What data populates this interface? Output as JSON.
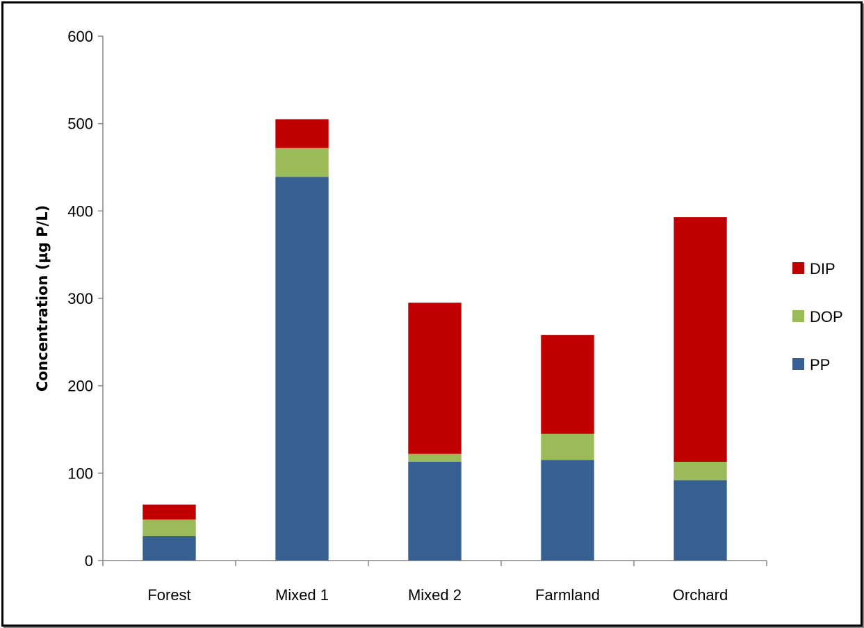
{
  "chart_data": {
    "type": "bar",
    "stacked": true,
    "categories": [
      "Forest",
      "Mixed 1",
      "Mixed 2",
      "Farmland",
      "Orchard"
    ],
    "series": [
      {
        "name": "PP",
        "color": "#376092",
        "values": [
          28,
          439,
          113,
          115,
          92
        ]
      },
      {
        "name": "DOP",
        "color": "#9bbb59",
        "values": [
          19,
          33,
          9,
          30,
          21
        ]
      },
      {
        "name": "DIP",
        "color": "#c00000",
        "values": [
          17,
          33,
          173,
          113,
          280
        ]
      }
    ],
    "title": "",
    "xlabel": "",
    "ylabel": "Concentration (µg P/L)",
    "ylim": [
      0,
      600
    ],
    "yticks": [
      0,
      100,
      200,
      300,
      400,
      500,
      600
    ],
    "grid": false,
    "legend": {
      "position": "right",
      "order": [
        "DIP",
        "DOP",
        "PP"
      ]
    }
  }
}
